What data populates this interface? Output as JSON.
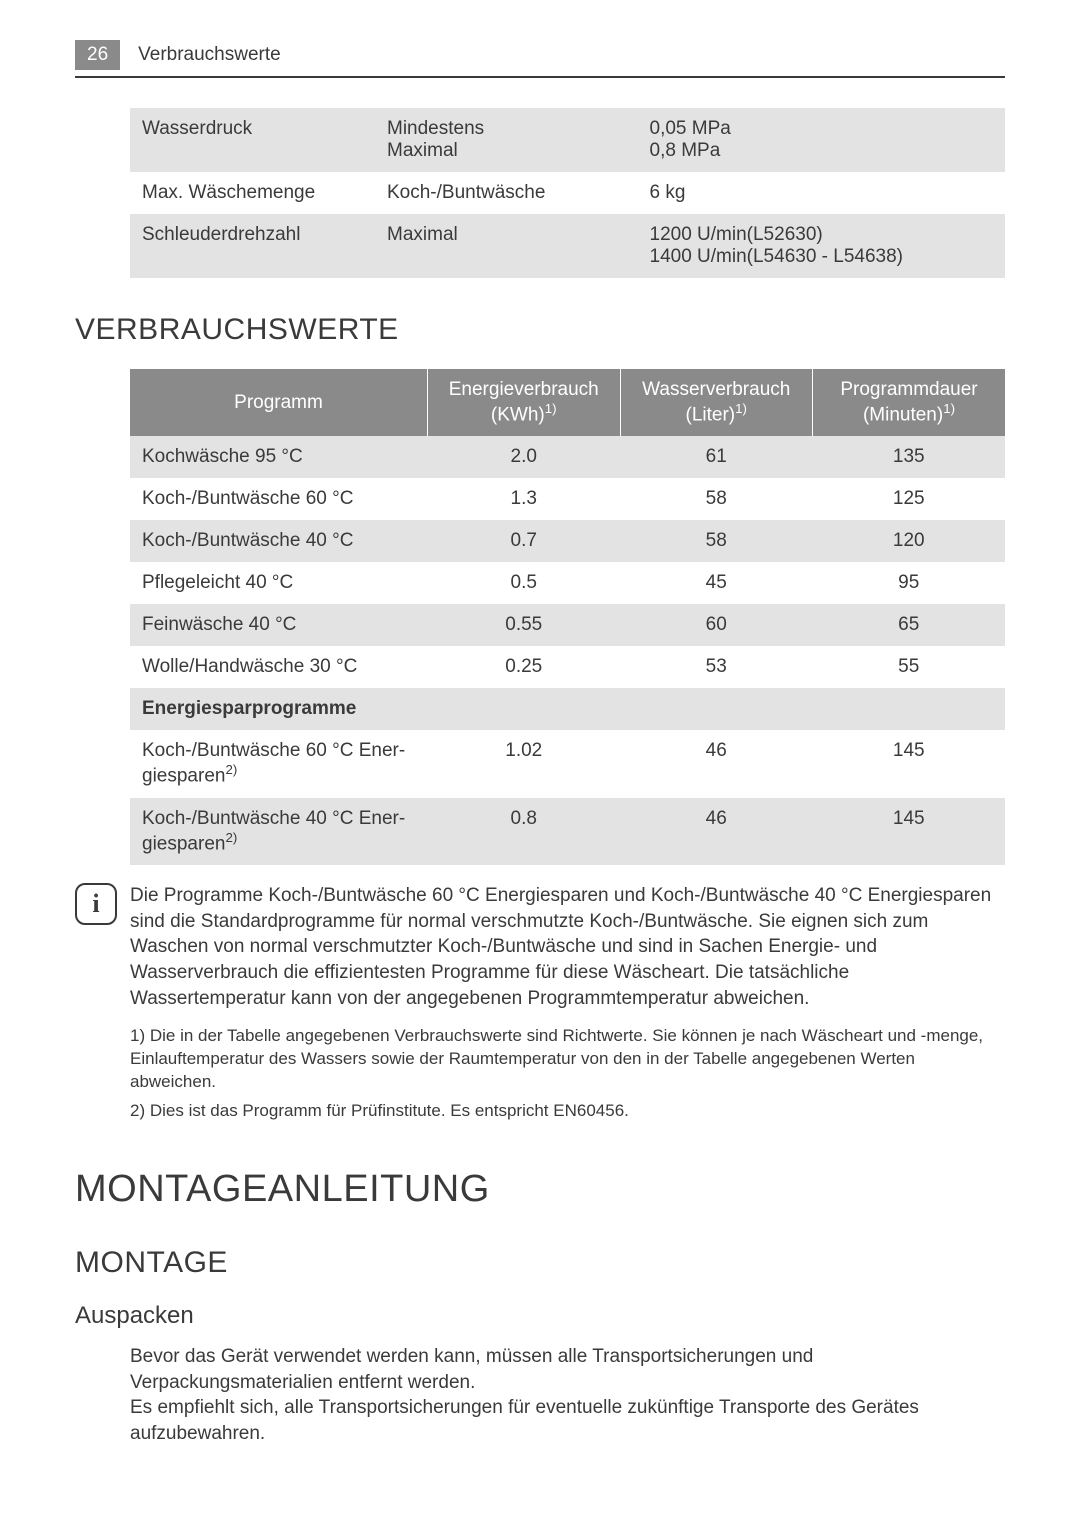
{
  "header": {
    "page_number": "26",
    "title": "Verbrauchswerte"
  },
  "specs": {
    "rows": [
      {
        "label": "Wasserdruck",
        "mid": "Mindestens\nMaximal",
        "val": "0,05 MPa\n0,8 MPa"
      },
      {
        "label": "Max. Wäschemenge",
        "mid": "Koch-/Buntwäsche",
        "val": "6 kg"
      },
      {
        "label": "Schleuderdrehzahl",
        "mid": "Maximal",
        "val": "1200 U/min(L52630)\n1400 U/min(L54630 - L54638)"
      }
    ]
  },
  "section_verbrauch": "VERBRAUCHSWERTE",
  "prog_table": {
    "headers": {
      "c0": "Programm",
      "c1_pre": "Energieverbrauch",
      "c1_unit": "(KWh)",
      "c1_sup": "1)",
      "c2_pre": "Wasserverbrauch",
      "c2_unit": "(Liter)",
      "c2_sup": "1)",
      "c3_pre": "Programmdauer",
      "c3_unit": "(Minuten)",
      "c3_sup": "1)"
    },
    "rows": [
      {
        "p": "Kochwäsche 95 °C",
        "e": "2.0",
        "w": "61",
        "d": "135"
      },
      {
        "p": "Koch-/Buntwäsche 60 °C",
        "e": "1.3",
        "w": "58",
        "d": "125"
      },
      {
        "p": "Koch-/Buntwäsche 40 °C",
        "e": "0.7",
        "w": "58",
        "d": "120"
      },
      {
        "p": "Pflegeleicht 40 °C",
        "e": "0.5",
        "w": "45",
        "d": "95"
      },
      {
        "p": "Feinwäsche 40 °C",
        "e": "0.55",
        "w": "60",
        "d": "65"
      },
      {
        "p": "Wolle/Handwäsche 30 °C",
        "e": "0.25",
        "w": "53",
        "d": "55"
      }
    ],
    "subhead": "Energiesparprogramme",
    "rows2": [
      {
        "p_pre": "Koch-/Buntwäsche 60 °C Energiesparen",
        "p_sup": "2)",
        "e": "1.02",
        "w": "46",
        "d": "145"
      },
      {
        "p_pre": "Koch-/Buntwäsche 40 °C Energiesparen",
        "p_sup": "2)",
        "e": "0.8",
        "w": "46",
        "d": "145"
      }
    ]
  },
  "info_text": "Die Programme Koch-/Buntwäsche 60 °C Energiesparen und Koch-/Buntwäsche 40 °C Energiesparen sind die Standardprogramme für normal verschmutzte Koch-/Buntwäsche. Sie eignen sich zum Waschen von normal verschmutzter Koch-/Buntwäsche und sind in Sachen Energie- und Wasserverbrauch die effizientesten Programme für diese Wäscheart. Die tatsächliche Wassertemperatur kann von der angegebenen Programmtemperatur abweichen.",
  "footnotes": {
    "f1": "1) Die in der Tabelle angegebenen Verbrauchswerte sind Richtwerte. Sie können je nach Wäscheart und -menge, Einlauftemperatur des Wassers sowie der Raumtemperatur von den in der Tabelle angegebenen Werten abweichen.",
    "f2": "2) Dies ist das Programm für Prüfinstitute. Es entspricht EN60456."
  },
  "section_montageanleitung": "MONTAGEANLEITUNG",
  "section_montage": "MONTAGE",
  "section_auspacken": "Auspacken",
  "auspacken_text": "Bevor das Gerät verwendet werden kann, müssen alle Transportsicherungen und Verpackungsmaterialien entfernt werden.\nEs empfiehlt sich, alle Transportsicherungen für eventuelle zukünftige Transporte des Gerätes aufzubewahren."
}
